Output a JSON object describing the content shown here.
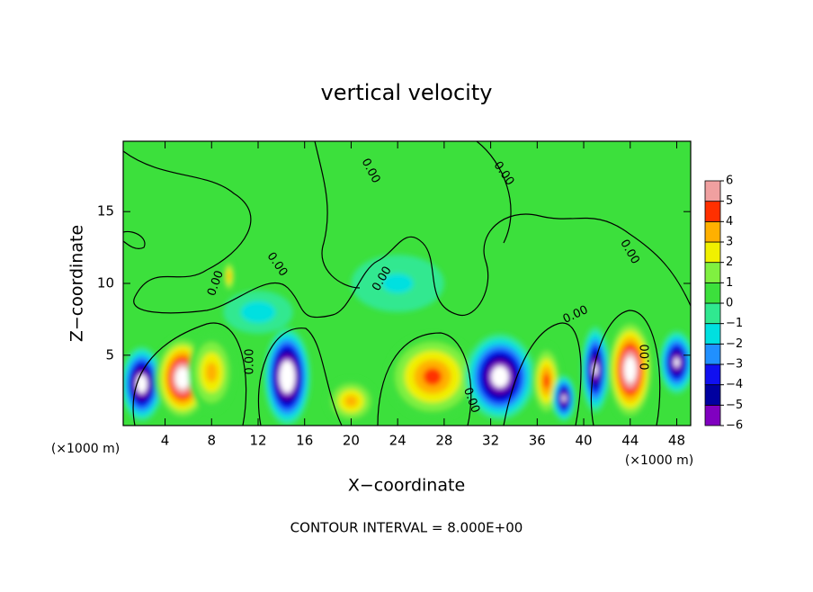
{
  "chart_data": {
    "type": "contour",
    "title": "vertical velocity",
    "x_label": "X−coordinate",
    "y_label": "Z−coordinate",
    "x_unit_label": "(×1000 m)",
    "footnote": "CONTOUR INTERVAL = 8.000E+00",
    "xlim": [
      0.4,
      49.2
    ],
    "ylim": [
      0.1,
      19.9
    ],
    "xticks": [
      4,
      8,
      12,
      16,
      20,
      24,
      28,
      32,
      36,
      40,
      44,
      48
    ],
    "yticks": [
      5,
      10,
      15
    ],
    "colorbar_ticks": [
      {
        "value": -6,
        "label": "−6"
      },
      {
        "value": -5,
        "label": "−5"
      },
      {
        "value": -4,
        "label": "−4"
      },
      {
        "value": -3,
        "label": "−3"
      },
      {
        "value": -2,
        "label": "−2"
      },
      {
        "value": -1,
        "label": "−1"
      },
      0,
      1,
      2,
      3,
      4,
      5,
      6
    ],
    "colors": [
      "#8000c0",
      "#0000a0",
      "#1010f0",
      "#2090ff",
      "#00e0e0",
      "#30e890",
      "#3ce03c",
      "#80f040",
      "#f0f000",
      "#ffb000",
      "#ff3000",
      "#f0a0a0"
    ],
    "contour_labels": [
      "0.00",
      "0.00",
      "0.00",
      "0.00",
      "0.00",
      "0.00",
      "0.00",
      "0.00",
      "0.00",
      "0.00"
    ],
    "features": [
      {
        "x": 2,
        "z": 3,
        "width": 1.8,
        "height": 2.6,
        "w": -8
      },
      {
        "x": 5.5,
        "z": 3.4,
        "width": 2.4,
        "height": 3.0,
        "w": 8
      },
      {
        "x": 8,
        "z": 3.8,
        "width": 2.0,
        "height": 2.8,
        "w": 4
      },
      {
        "x": 14.5,
        "z": 3.5,
        "width": 2.0,
        "height": 3.4,
        "w": -9
      },
      {
        "x": 20,
        "z": 1.8,
        "width": 2.2,
        "height": 1.6,
        "w": 4
      },
      {
        "x": 27,
        "z": 3.5,
        "width": 4.0,
        "height": 3.0,
        "w": 5
      },
      {
        "x": 32.8,
        "z": 3.5,
        "width": 3.0,
        "height": 3.0,
        "w": -8
      },
      {
        "x": 36.8,
        "z": 3.2,
        "width": 1.3,
        "height": 2.6,
        "w": 5
      },
      {
        "x": 38.3,
        "z": 2,
        "width": 1.0,
        "height": 1.6,
        "w": -7
      },
      {
        "x": 41,
        "z": 4,
        "width": 1.2,
        "height": 3.0,
        "w": -7
      },
      {
        "x": 44,
        "z": 4,
        "width": 2.0,
        "height": 3.6,
        "w": 8
      },
      {
        "x": 48,
        "z": 4.5,
        "width": 1.5,
        "height": 2.2,
        "w": -7
      },
      {
        "x": 9.5,
        "z": 10.5,
        "width": 0.5,
        "height": 1.2,
        "w": 4
      },
      {
        "x": 12,
        "z": 8,
        "width": 3.0,
        "height": 1.5,
        "w": -2
      },
      {
        "x": 24,
        "z": 10,
        "width": 4.0,
        "height": 2.0,
        "w": -1.5
      }
    ]
  }
}
